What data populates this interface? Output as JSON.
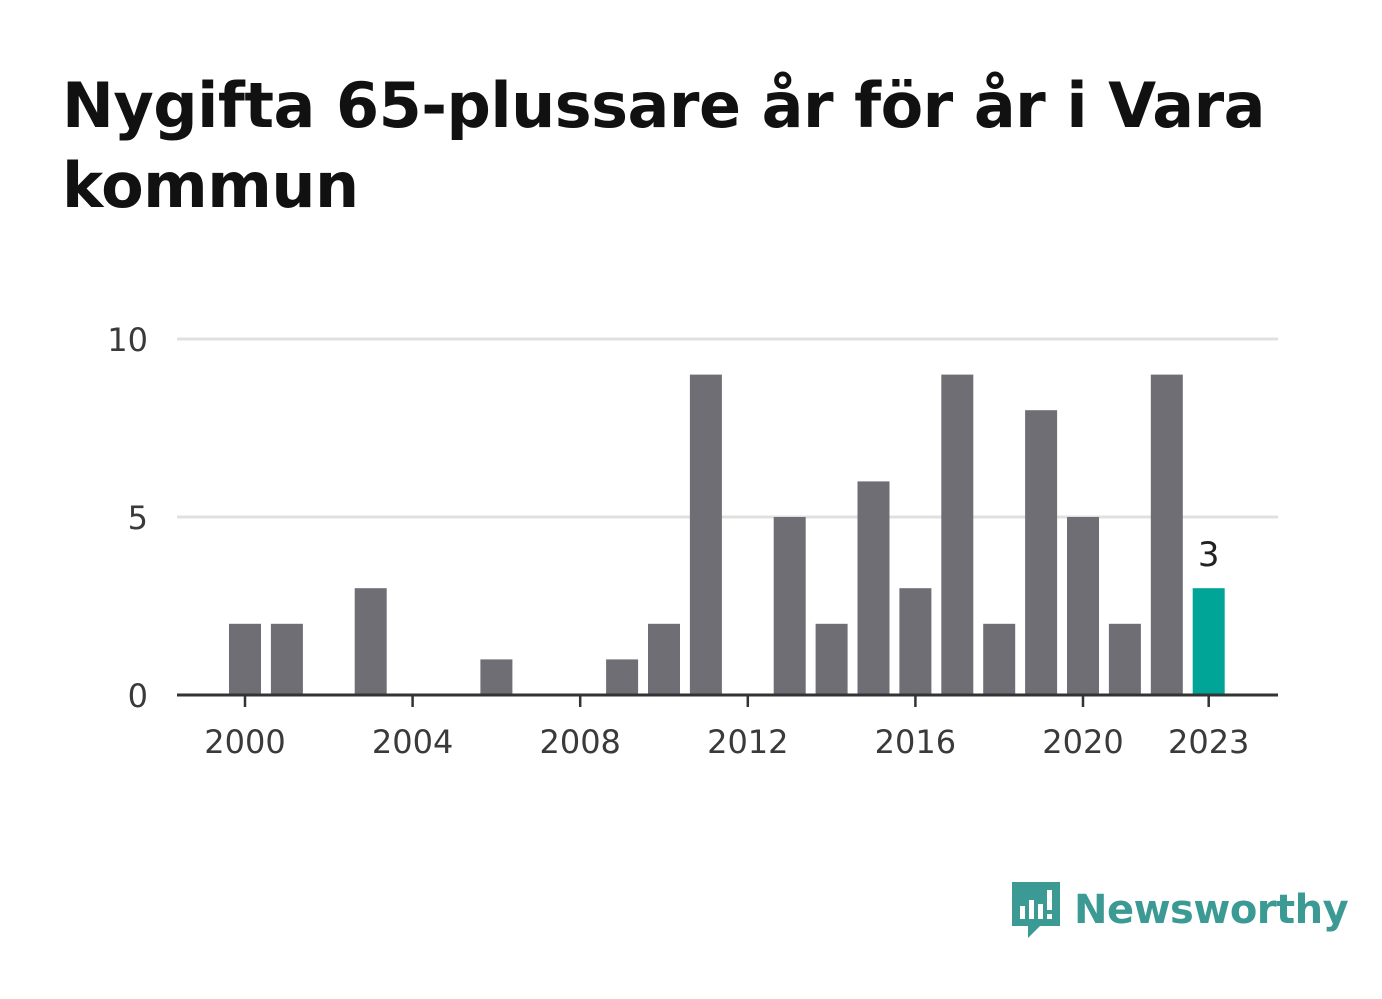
{
  "title": "Nygifta 65-plussare år för år i Vara kommun",
  "brand": {
    "name": "Newsworthy",
    "icon": "newsworthy-logo-icon",
    "color": "#3b9a94"
  },
  "colors": {
    "bar": "#6f6e74",
    "highlight": "#00a597",
    "grid": "#e0e0e0",
    "axis": "#333333"
  },
  "chart_data": {
    "type": "bar",
    "title": "Nygifta 65-plussare år för år i Vara kommun",
    "xlabel": "",
    "ylabel": "",
    "categories": [
      2000,
      2001,
      2002,
      2003,
      2004,
      2005,
      2006,
      2007,
      2008,
      2009,
      2010,
      2011,
      2012,
      2013,
      2014,
      2015,
      2016,
      2017,
      2018,
      2019,
      2020,
      2021,
      2022,
      2023
    ],
    "values": [
      2,
      2,
      0,
      3,
      0,
      0,
      1,
      0,
      0,
      1,
      2,
      9,
      0,
      5,
      2,
      6,
      3,
      9,
      2,
      8,
      5,
      2,
      9,
      3
    ],
    "highlight_category": 2023,
    "data_labels": [
      {
        "category": 2023,
        "text": "3"
      }
    ],
    "ylim": [
      0,
      10
    ],
    "yticks": [
      0,
      5,
      10
    ],
    "xticks": [
      2000,
      2004,
      2008,
      2012,
      2016,
      2020,
      2023
    ],
    "grid": true,
    "legend": "none"
  }
}
